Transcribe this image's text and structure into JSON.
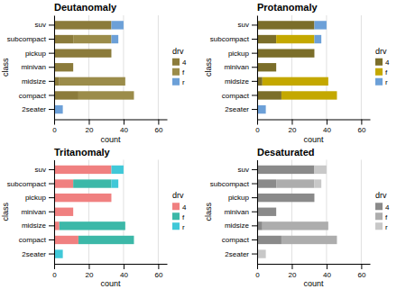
{
  "chart_data": [
    {
      "type": "bar",
      "title": "Deutanomaly",
      "orientation": "horizontal",
      "stacked": true,
      "categories": [
        "2seater",
        "compact",
        "midsize",
        "minivan",
        "pickup",
        "subcompact",
        "suv"
      ],
      "series": [
        {
          "name": "4",
          "color": "#8B7B3B",
          "values": [
            0,
            14,
            3,
            11,
            33,
            11,
            33
          ]
        },
        {
          "name": "f",
          "color": "#9B8C4A",
          "values": [
            0,
            32,
            38,
            0,
            0,
            22,
            0
          ]
        },
        {
          "name": "r",
          "color": "#6CA0D8",
          "values": [
            5,
            0,
            0,
            0,
            0,
            4,
            7
          ]
        }
      ],
      "xlabel": "count",
      "ylabel": "class",
      "xlim": [
        0,
        65
      ],
      "xticks": [
        0,
        20,
        40,
        60
      ],
      "grid": true,
      "legend": "right",
      "legend_title": "drv"
    },
    {
      "type": "bar",
      "title": "Protanomaly",
      "orientation": "horizontal",
      "stacked": true,
      "categories": [
        "2seater",
        "compact",
        "midsize",
        "minivan",
        "pickup",
        "subcompact",
        "suv"
      ],
      "series": [
        {
          "name": "4",
          "color": "#7B6E2A",
          "values": [
            0,
            14,
            3,
            11,
            33,
            11,
            33
          ]
        },
        {
          "name": "f",
          "color": "#C4A800",
          "values": [
            0,
            32,
            38,
            0,
            0,
            22,
            0
          ]
        },
        {
          "name": "r",
          "color": "#6CA0D8",
          "values": [
            5,
            0,
            0,
            0,
            0,
            4,
            7
          ]
        }
      ],
      "xlabel": "count",
      "ylabel": "class",
      "xlim": [
        0,
        65
      ],
      "xticks": [
        0,
        20,
        40,
        60
      ],
      "grid": true,
      "legend": "right",
      "legend_title": "drv"
    },
    {
      "type": "bar",
      "title": "Tritanomaly",
      "orientation": "horizontal",
      "stacked": true,
      "categories": [
        "2seater",
        "compact",
        "midsize",
        "minivan",
        "pickup",
        "subcompact",
        "suv"
      ],
      "series": [
        {
          "name": "4",
          "color": "#F08080",
          "values": [
            0,
            14,
            3,
            11,
            33,
            11,
            33
          ]
        },
        {
          "name": "f",
          "color": "#3CB8A8",
          "values": [
            0,
            32,
            38,
            0,
            0,
            22,
            0
          ]
        },
        {
          "name": "r",
          "color": "#40C8D8",
          "values": [
            5,
            0,
            0,
            0,
            0,
            4,
            7
          ]
        }
      ],
      "xlabel": "count",
      "ylabel": "class",
      "xlim": [
        0,
        65
      ],
      "xticks": [
        0,
        20,
        40,
        60
      ],
      "grid": true,
      "legend": "right",
      "legend_title": "drv"
    },
    {
      "type": "bar",
      "title": "Desaturated",
      "orientation": "horizontal",
      "stacked": true,
      "categories": [
        "2seater",
        "compact",
        "midsize",
        "minivan",
        "pickup",
        "subcompact",
        "suv"
      ],
      "series": [
        {
          "name": "4",
          "color": "#8A8A8A",
          "values": [
            0,
            14,
            3,
            11,
            33,
            11,
            33
          ]
        },
        {
          "name": "f",
          "color": "#ADADAD",
          "values": [
            0,
            32,
            38,
            0,
            0,
            22,
            0
          ]
        },
        {
          "name": "r",
          "color": "#C8C8C8",
          "values": [
            5,
            0,
            0,
            0,
            0,
            4,
            7
          ]
        }
      ],
      "xlabel": "count",
      "ylabel": "class",
      "xlim": [
        0,
        65
      ],
      "xticks": [
        0,
        20,
        40,
        60
      ],
      "grid": true,
      "legend": "right",
      "legend_title": "drv"
    }
  ]
}
